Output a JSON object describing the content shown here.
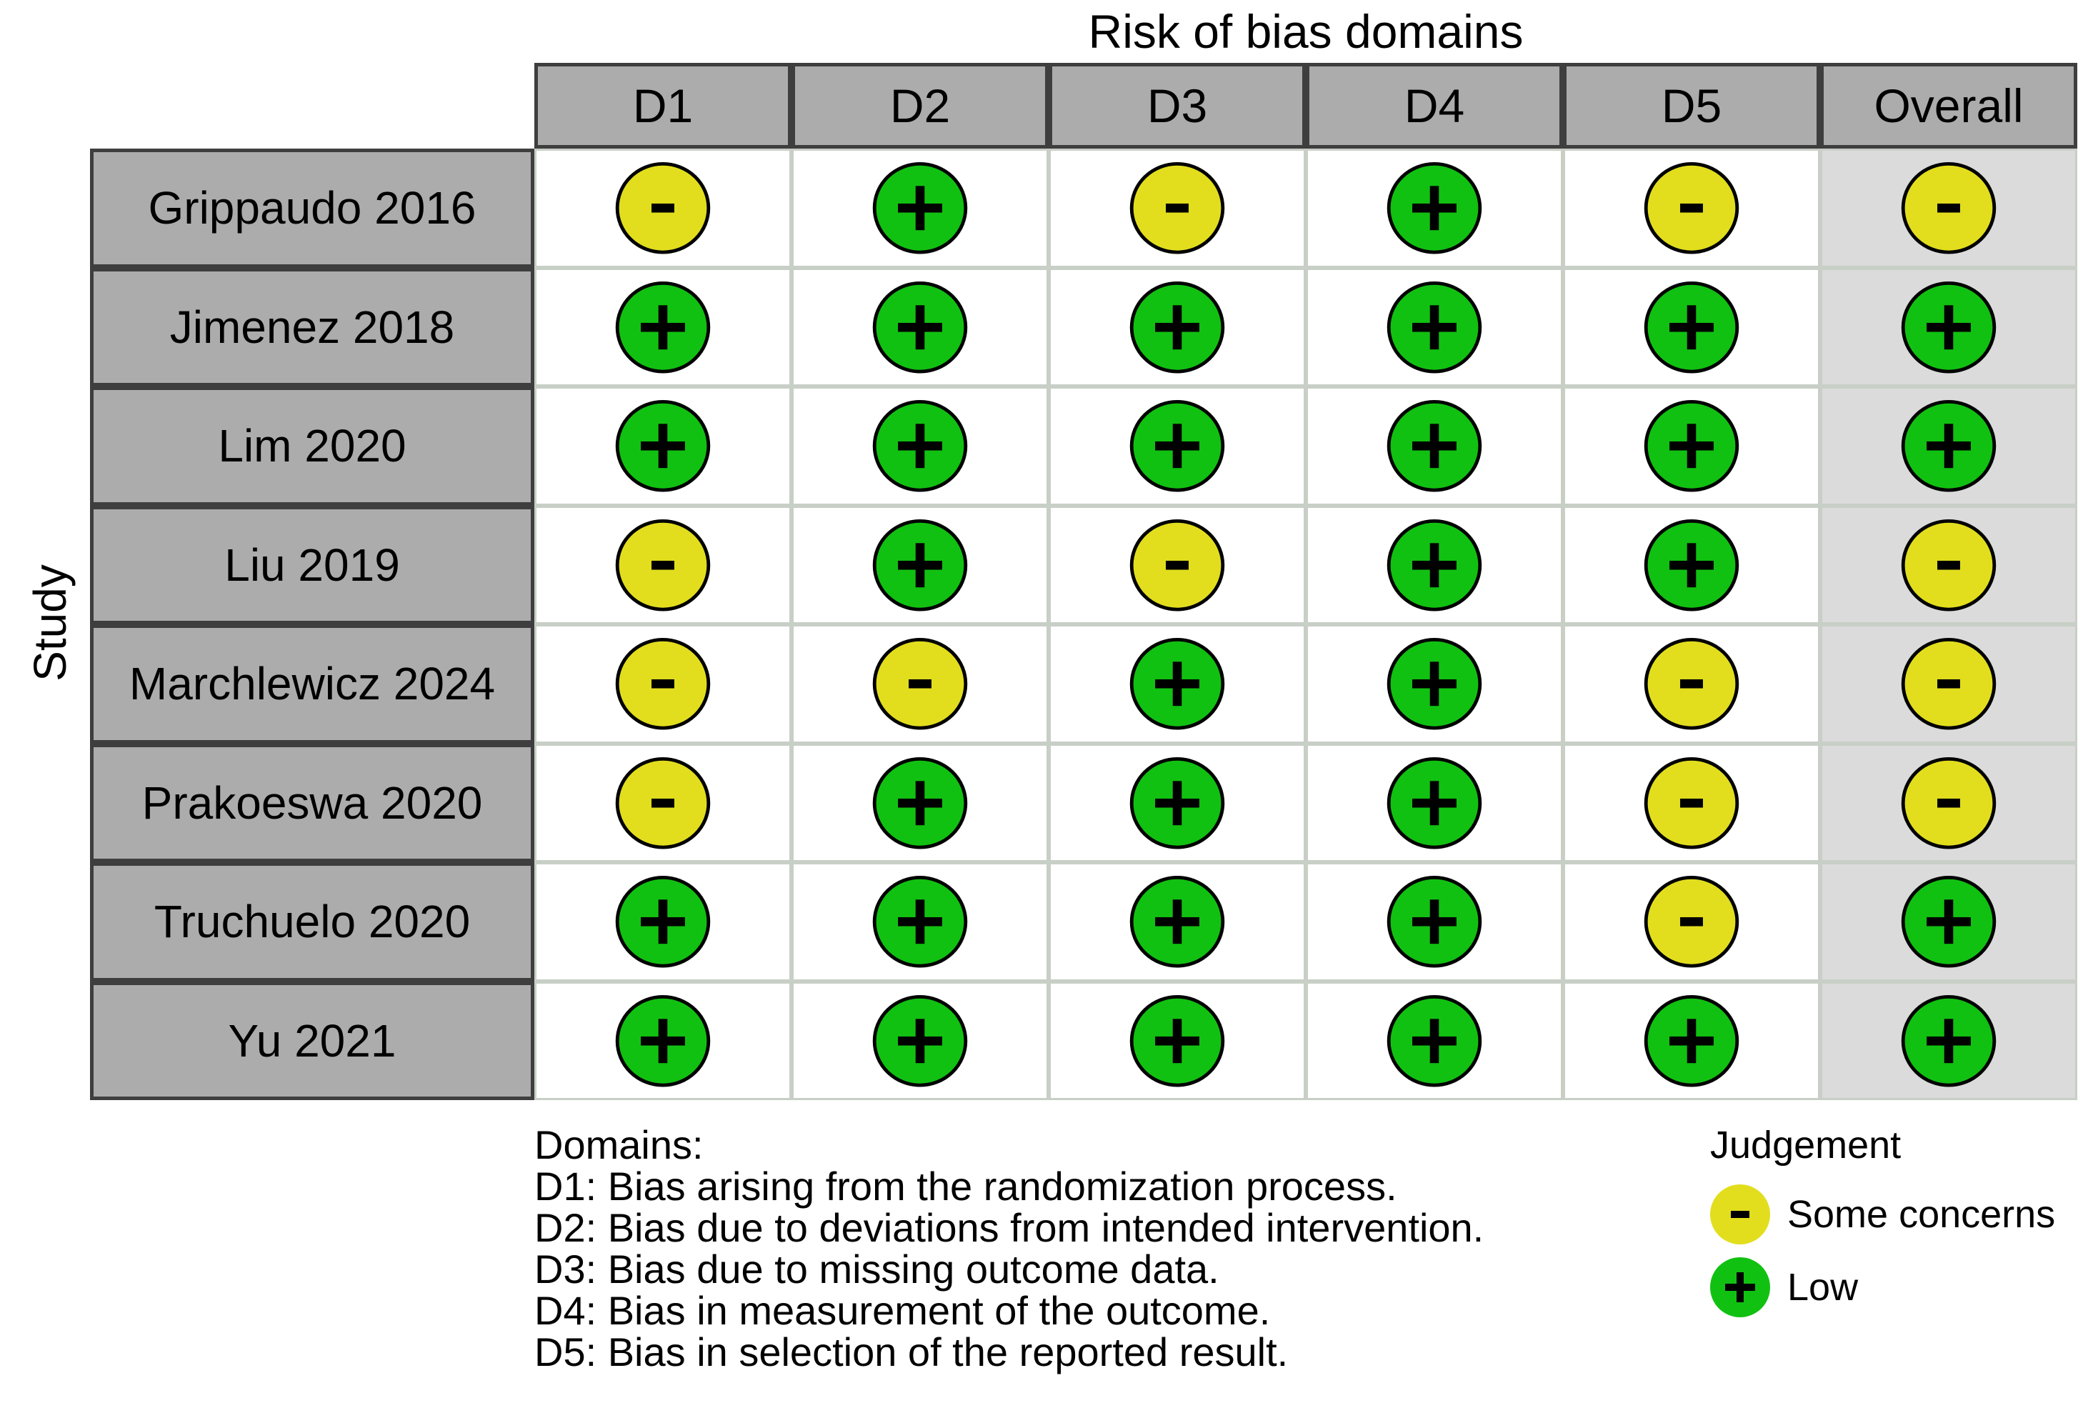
{
  "title": "Risk of bias domains",
  "axis_label": "Study",
  "columns": [
    "D1",
    "D2",
    "D3",
    "D4",
    "D5",
    "Overall"
  ],
  "studies": [
    {
      "name": "Grippaudo 2016",
      "judgements": [
        "some_concerns",
        "low",
        "some_concerns",
        "low",
        "some_concerns",
        "some_concerns"
      ]
    },
    {
      "name": "Jimenez 2018",
      "judgements": [
        "low",
        "low",
        "low",
        "low",
        "low",
        "low"
      ]
    },
    {
      "name": "Lim 2020",
      "judgements": [
        "low",
        "low",
        "low",
        "low",
        "low",
        "low"
      ]
    },
    {
      "name": "Liu 2019",
      "judgements": [
        "some_concerns",
        "low",
        "some_concerns",
        "low",
        "low",
        "some_concerns"
      ]
    },
    {
      "name": "Marchlewicz 2024",
      "judgements": [
        "some_concerns",
        "some_concerns",
        "low",
        "low",
        "some_concerns",
        "some_concerns"
      ]
    },
    {
      "name": "Prakoeswa 2020",
      "judgements": [
        "some_concerns",
        "low",
        "low",
        "low",
        "some_concerns",
        "some_concerns"
      ]
    },
    {
      "name": "Truchuelo 2020",
      "judgements": [
        "low",
        "low",
        "low",
        "low",
        "some_concerns",
        "low"
      ]
    },
    {
      "name": "Yu 2021",
      "judgements": [
        "low",
        "low",
        "low",
        "low",
        "low",
        "low"
      ]
    }
  ],
  "judgement_types": {
    "some_concerns": {
      "label": "Some concerns",
      "symbol": "-",
      "color": "#E2DE1E"
    },
    "low": {
      "label": "Low",
      "symbol": "+",
      "color": "#11C111"
    }
  },
  "footer": {
    "domains_heading": "Domains:",
    "domains": [
      "D1: Bias arising from the randomization process.",
      "D2: Bias due to deviations from intended intervention.",
      "D3: Bias due to missing outcome data.",
      "D4: Bias in measurement of the outcome.",
      "D5: Bias in selection of the reported result."
    ],
    "legend": {
      "heading": "Judgement",
      "items": [
        {
          "key": "some_concerns",
          "symbol": "-",
          "label": "Some concerns"
        },
        {
          "key": "low",
          "symbol": "+",
          "label": "Low"
        }
      ]
    }
  },
  "colors": {
    "header_fill": "#ACACAC",
    "study_fill": "#ACACAC",
    "overall_column_fill": "#DBDBDB",
    "cell_fill": "#FFFFFF",
    "dark_border": "#3E3E3E",
    "grid_line": "#C8CFC6",
    "some_concerns": "#E2DE1E",
    "low": "#11C111",
    "symbol": "#000000"
  },
  "chart_data": {
    "type": "heatmap",
    "title": "Risk of bias domains",
    "ylabel": "Study",
    "x_categories": [
      "D1",
      "D2",
      "D3",
      "D4",
      "D5",
      "Overall"
    ],
    "y_categories": [
      "Grippaudo 2016",
      "Jimenez 2018",
      "Lim 2020",
      "Liu 2019",
      "Marchlewicz 2024",
      "Prakoeswa 2020",
      "Truchuelo 2020",
      "Yu 2021"
    ],
    "values": [
      [
        "Some concerns",
        "Low",
        "Some concerns",
        "Low",
        "Some concerns",
        "Some concerns"
      ],
      [
        "Low",
        "Low",
        "Low",
        "Low",
        "Low",
        "Low"
      ],
      [
        "Low",
        "Low",
        "Low",
        "Low",
        "Low",
        "Low"
      ],
      [
        "Some concerns",
        "Low",
        "Some concerns",
        "Low",
        "Low",
        "Some concerns"
      ],
      [
        "Some concerns",
        "Some concerns",
        "Low",
        "Low",
        "Some concerns",
        "Some concerns"
      ],
      [
        "Some concerns",
        "Low",
        "Low",
        "Low",
        "Some concerns",
        "Some concerns"
      ],
      [
        "Low",
        "Low",
        "Low",
        "Low",
        "Some concerns",
        "Low"
      ],
      [
        "Low",
        "Low",
        "Low",
        "Low",
        "Low",
        "Low"
      ]
    ],
    "legend": {
      "title": "Judgement",
      "position": "bottom-right",
      "entries": [
        {
          "label": "Some concerns",
          "symbol": "-",
          "color": "#E2DE1E"
        },
        {
          "label": "Low",
          "symbol": "+",
          "color": "#11C111"
        }
      ]
    },
    "footnotes": [
      "D1: Bias arising from the randomization process.",
      "D2: Bias due to deviations from intended intervention.",
      "D3: Bias due to missing outcome data.",
      "D4: Bias in measurement of the outcome.",
      "D5: Bias in selection of the reported result."
    ]
  }
}
